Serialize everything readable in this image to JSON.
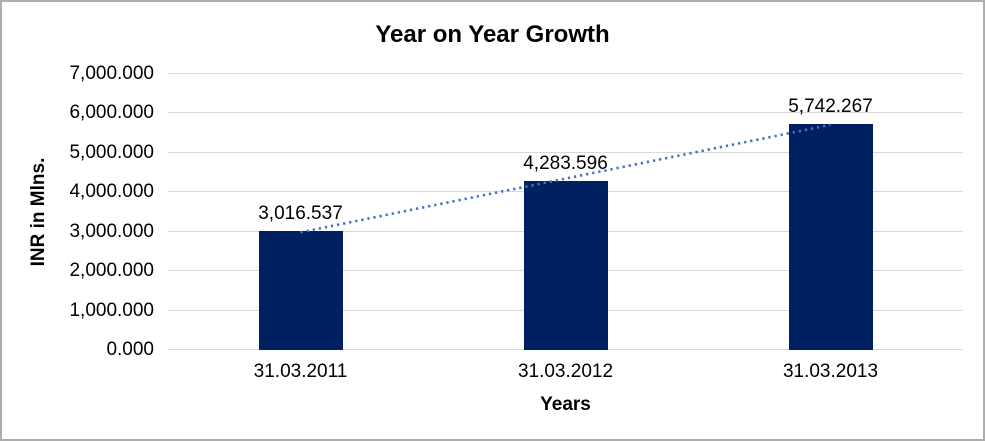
{
  "chart_data": {
    "type": "bar",
    "title": "Year on Year Growth",
    "xlabel": "Years",
    "ylabel": "INR in Mlns.",
    "categories": [
      "31.03.2011",
      "31.03.2012",
      "31.03.2013"
    ],
    "values": [
      3016.537,
      4283.596,
      5742.267
    ],
    "value_labels": [
      "3,016.537",
      "4,283.596",
      "5,742.267"
    ],
    "ylim": [
      0,
      7000
    ],
    "yticks": {
      "values": [
        0,
        1000,
        2000,
        3000,
        4000,
        5000,
        6000,
        7000
      ],
      "labels": [
        "0.000",
        "1,000.000",
        "2,000.000",
        "3,000.000",
        "4,000.000",
        "5,000.000",
        "6,000.000",
        "7,000.000"
      ]
    },
    "grid": true,
    "legend": "none",
    "trendline": {
      "type": "linear",
      "style": "dotted",
      "color": "#4472C4"
    },
    "colors": {
      "bar": "#002060",
      "gridline": "#D9D9D9",
      "axis_text": "#000000",
      "frame_border": "#ADADAD",
      "background": "#FFFFFF"
    }
  }
}
